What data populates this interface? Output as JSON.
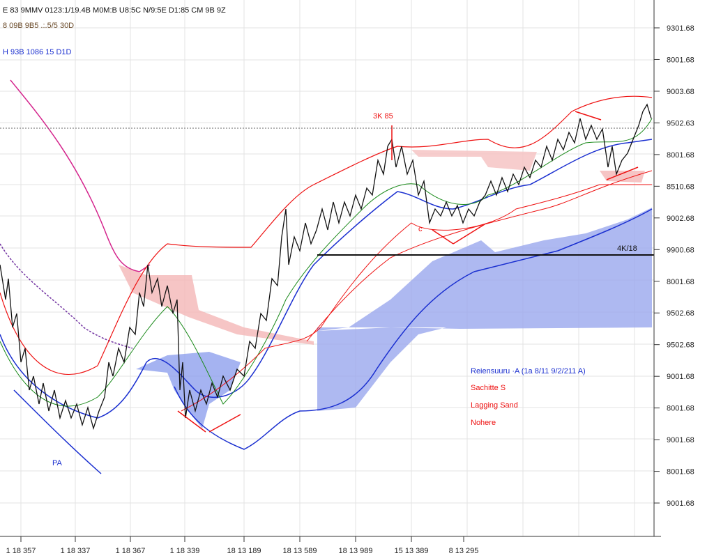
{
  "header": {
    "lines": [
      "E 83 9MMV 0123:1/19.4B M0M:B U8:5C N/9:5E D1:85 CM 9B 9Z",
      "8 09B 9B5 .:.5/5 30D",
      "H 93B 1086 15 D1D"
    ]
  },
  "y_axis_labels": [
    "9301.68",
    "8001.68",
    "9003.68",
    "9502.63",
    "8001.68",
    "8510.68",
    "9002.68",
    "9900.68",
    "8001.68",
    "9502.68",
    "9502.68",
    "9001.68",
    "8001.68",
    "9001.68",
    "8001.68",
    "9001.68"
  ],
  "x_axis_labels": [
    "1 18 357",
    "1 18 337",
    "1 18 367",
    "1 18 339",
    "18 13 189",
    "18 13 589",
    "18 13 989",
    "15 13 389",
    "8 13 295"
  ],
  "annotations": {
    "peak": "3K 85",
    "low": "PA",
    "level": "4K/18",
    "c_mark": "c"
  },
  "legend": [
    "Reiensuuru ·A (1a 8/11 9/2/211 A)",
    "Sachitte S",
    "Lagging Sand",
    "Nohere"
  ]
}
